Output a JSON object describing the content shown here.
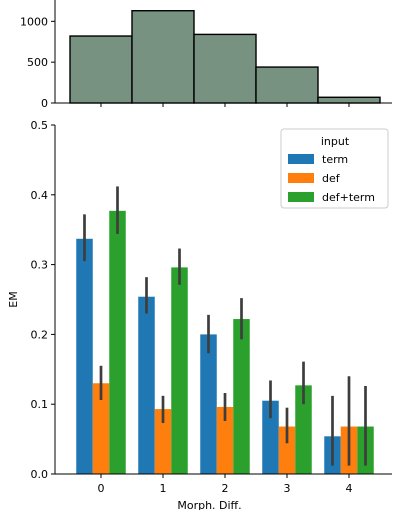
{
  "chart_data": [
    {
      "type": "bar",
      "categories": [
        "0",
        "1",
        "2",
        "3",
        "4"
      ],
      "values": [
        820,
        1130,
        840,
        440,
        70
      ],
      "color": "#789282",
      "xlabel": "",
      "ylabel": "",
      "ylim": [
        0,
        1200
      ],
      "yticks": [
        0,
        500,
        1000
      ],
      "grid": false
    },
    {
      "type": "bar",
      "categories": [
        "0",
        "1",
        "2",
        "3",
        "4"
      ],
      "xlabel": "Morph. Diff.",
      "ylabel": "EM",
      "ylim": [
        0,
        0.5
      ],
      "yticks": [
        "0.0",
        "0.1",
        "0.2",
        "0.3",
        "0.4",
        "0.5"
      ],
      "grid": false,
      "legend": {
        "title": "input",
        "placement": "top-right"
      },
      "series": [
        {
          "name": "term",
          "color": "#1f77b4",
          "values": [
            0.337,
            0.254,
            0.2,
            0.105,
            0.054
          ],
          "ci_low": [
            0.305,
            0.23,
            0.173,
            0.08,
            0.012
          ],
          "ci_high": [
            0.372,
            0.282,
            0.228,
            0.134,
            0.112
          ]
        },
        {
          "name": "def",
          "color": "#ff7f0e",
          "values": [
            0.13,
            0.093,
            0.096,
            0.068,
            0.068
          ],
          "ci_low": [
            0.106,
            0.073,
            0.076,
            0.044,
            0.012
          ],
          "ci_high": [
            0.155,
            0.112,
            0.116,
            0.095,
            0.14
          ]
        },
        {
          "name": "def+term",
          "color": "#2ca02c",
          "values": [
            0.377,
            0.296,
            0.222,
            0.127,
            0.068
          ],
          "ci_low": [
            0.344,
            0.271,
            0.193,
            0.1,
            0.012
          ],
          "ci_high": [
            0.412,
            0.323,
            0.252,
            0.161,
            0.126
          ]
        }
      ]
    }
  ]
}
